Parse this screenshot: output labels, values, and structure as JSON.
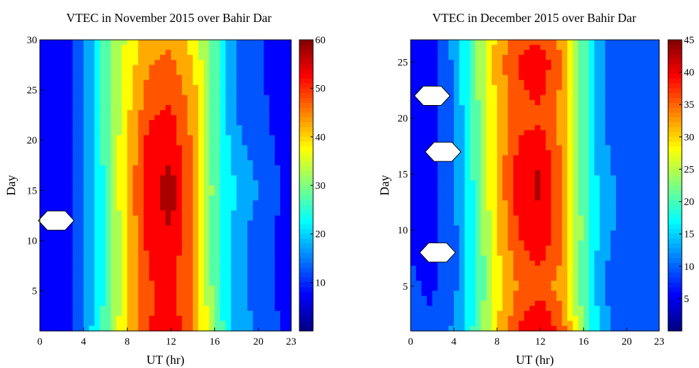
{
  "chart_data": [
    {
      "type": "heatmap",
      "title": "VTEC in November 2015 over Bahir Dar",
      "xlabel": "UT (hr)",
      "ylabel": "Day",
      "xlim": [
        0,
        23
      ],
      "ylim": [
        1,
        30
      ],
      "x_ticks": [
        0,
        4,
        8,
        12,
        16,
        20,
        23
      ],
      "y_ticks": [
        5,
        10,
        15,
        20,
        25,
        30
      ],
      "colorbar": {
        "min": 0,
        "max": 60,
        "ticks": [
          10,
          20,
          30,
          40,
          50,
          60
        ]
      },
      "ut_hours": [
        0,
        2,
        4,
        6,
        8,
        10,
        12,
        14,
        16,
        18,
        20,
        22,
        23
      ],
      "day_rows": [
        {
          "day": 1,
          "values": [
            5,
            5,
            16,
            27,
            40,
            50,
            53,
            46,
            30,
            18,
            14,
            10,
            10
          ]
        },
        {
          "day": 5,
          "values": [
            5,
            5,
            15,
            26,
            40,
            49,
            52,
            45,
            28,
            17,
            13,
            9,
            9
          ]
        },
        {
          "day": 10,
          "values": [
            5,
            5,
            14,
            25,
            40,
            52,
            54,
            44,
            27,
            17,
            12,
            9,
            9
          ]
        },
        {
          "day": 15,
          "values": [
            5,
            5,
            14,
            26,
            41,
            53,
            58,
            45,
            28,
            20,
            15,
            10,
            10
          ]
        },
        {
          "day": 20,
          "values": [
            5,
            5,
            15,
            27,
            40,
            52,
            53,
            44,
            27,
            16,
            12,
            9,
            9
          ]
        },
        {
          "day": 25,
          "values": [
            5,
            5,
            15,
            27,
            38,
            47,
            49,
            42,
            28,
            14,
            11,
            8,
            8
          ]
        },
        {
          "day": 30,
          "values": [
            5,
            5,
            15,
            27,
            36,
            43,
            44,
            38,
            27,
            14,
            11,
            8,
            8
          ]
        }
      ],
      "missing": [
        {
          "ut": 1.5,
          "day": 12
        }
      ]
    },
    {
      "type": "heatmap",
      "title": "VTEC in December 2015 over Bahir Dar",
      "xlabel": "UT (hr)",
      "ylabel": "Day",
      "xlim": [
        0,
        23
      ],
      "ylim": [
        1,
        27
      ],
      "x_ticks": [
        0,
        4,
        8,
        12,
        16,
        20,
        23
      ],
      "y_ticks": [
        5,
        10,
        15,
        20,
        25
      ],
      "colorbar": {
        "min": 0,
        "max": 45,
        "ticks": [
          5,
          10,
          15,
          20,
          25,
          30,
          35,
          40,
          45
        ]
      },
      "ut_hours": [
        0,
        2,
        4,
        6,
        8,
        10,
        12,
        14,
        16,
        18,
        20,
        22,
        23
      ],
      "day_rows": [
        {
          "day": 1,
          "values": [
            8,
            8,
            12,
            20,
            30,
            38,
            42,
            36,
            22,
            12,
            10,
            8,
            8
          ]
        },
        {
          "day": 5,
          "values": [
            8,
            7,
            10,
            18,
            28,
            34,
            36,
            32,
            20,
            11,
            10,
            8,
            8
          ]
        },
        {
          "day": 10,
          "values": [
            7,
            6,
            10,
            19,
            30,
            38,
            41,
            35,
            21,
            12,
            10,
            8,
            8
          ]
        },
        {
          "day": 15,
          "values": [
            7,
            6,
            11,
            20,
            31,
            40,
            42,
            34,
            20,
            12,
            10,
            8,
            8
          ]
        },
        {
          "day": 20,
          "values": [
            7,
            6,
            11,
            21,
            30,
            36,
            37,
            32,
            20,
            11,
            9,
            8,
            8
          ]
        },
        {
          "day": 25,
          "values": [
            7,
            6,
            12,
            22,
            32,
            38,
            40,
            34,
            20,
            11,
            9,
            8,
            8
          ]
        },
        {
          "day": 27,
          "values": [
            7,
            6,
            12,
            22,
            31,
            36,
            37,
            32,
            20,
            11,
            9,
            8,
            8
          ]
        }
      ],
      "missing": [
        {
          "ut": 2.0,
          "day": 22
        },
        {
          "ut": 3.0,
          "day": 17
        },
        {
          "ut": 2.5,
          "day": 8
        }
      ]
    }
  ]
}
